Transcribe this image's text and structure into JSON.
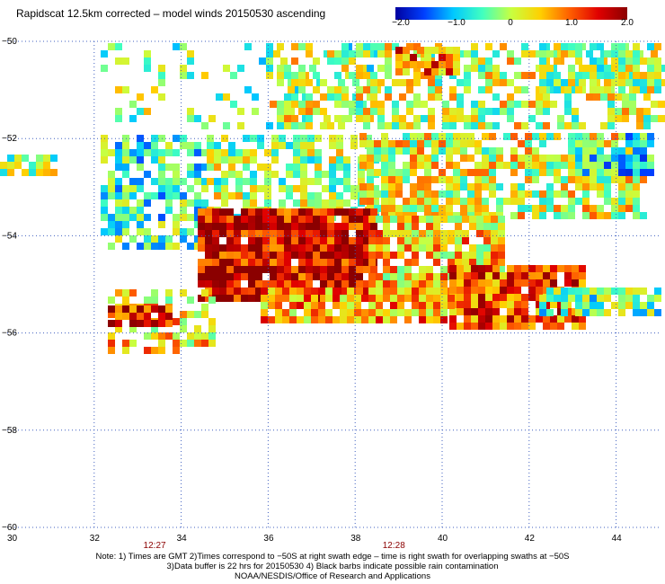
{
  "title": "Rapidscat 12.5km corrected – model winds 20150530 ascending",
  "colorbar": {
    "labels": [
      "−2.0",
      "−1.0",
      "0",
      "1.0",
      "2.0"
    ],
    "colors": [
      "#0000a0",
      "#0040ff",
      "#00c8ff",
      "#40ffc0",
      "#c8ff40",
      "#ffd000",
      "#ff6000",
      "#e00000",
      "#8b0000"
    ],
    "range": [
      -2.0,
      2.0
    ]
  },
  "map": {
    "lon_ticks": [
      "30",
      "32",
      "34",
      "36",
      "38",
      "40",
      "42",
      "44"
    ],
    "lat_ticks": [
      "−50",
      "−52",
      "−54",
      "−56",
      "−58",
      "−60"
    ],
    "lon_range": [
      30,
      45
    ],
    "lat_range": [
      -50,
      -60
    ],
    "times": [
      {
        "label": "12:27",
        "lon": 33.4
      },
      {
        "label": "12:28",
        "lon": 38.9
      }
    ],
    "grid_color": "#4060c0"
  },
  "notes": [
    "Note: 1) Times are GMT 2)Times correspond to −50S at right swath edge – time is right swath for overlapping swaths at −50S",
    "3)Data buffer is 22 hrs for 20150530 4) Black barbs indicate possible rain contamination",
    "NOAA/NESDIS/Office of Research and Applications"
  ]
}
